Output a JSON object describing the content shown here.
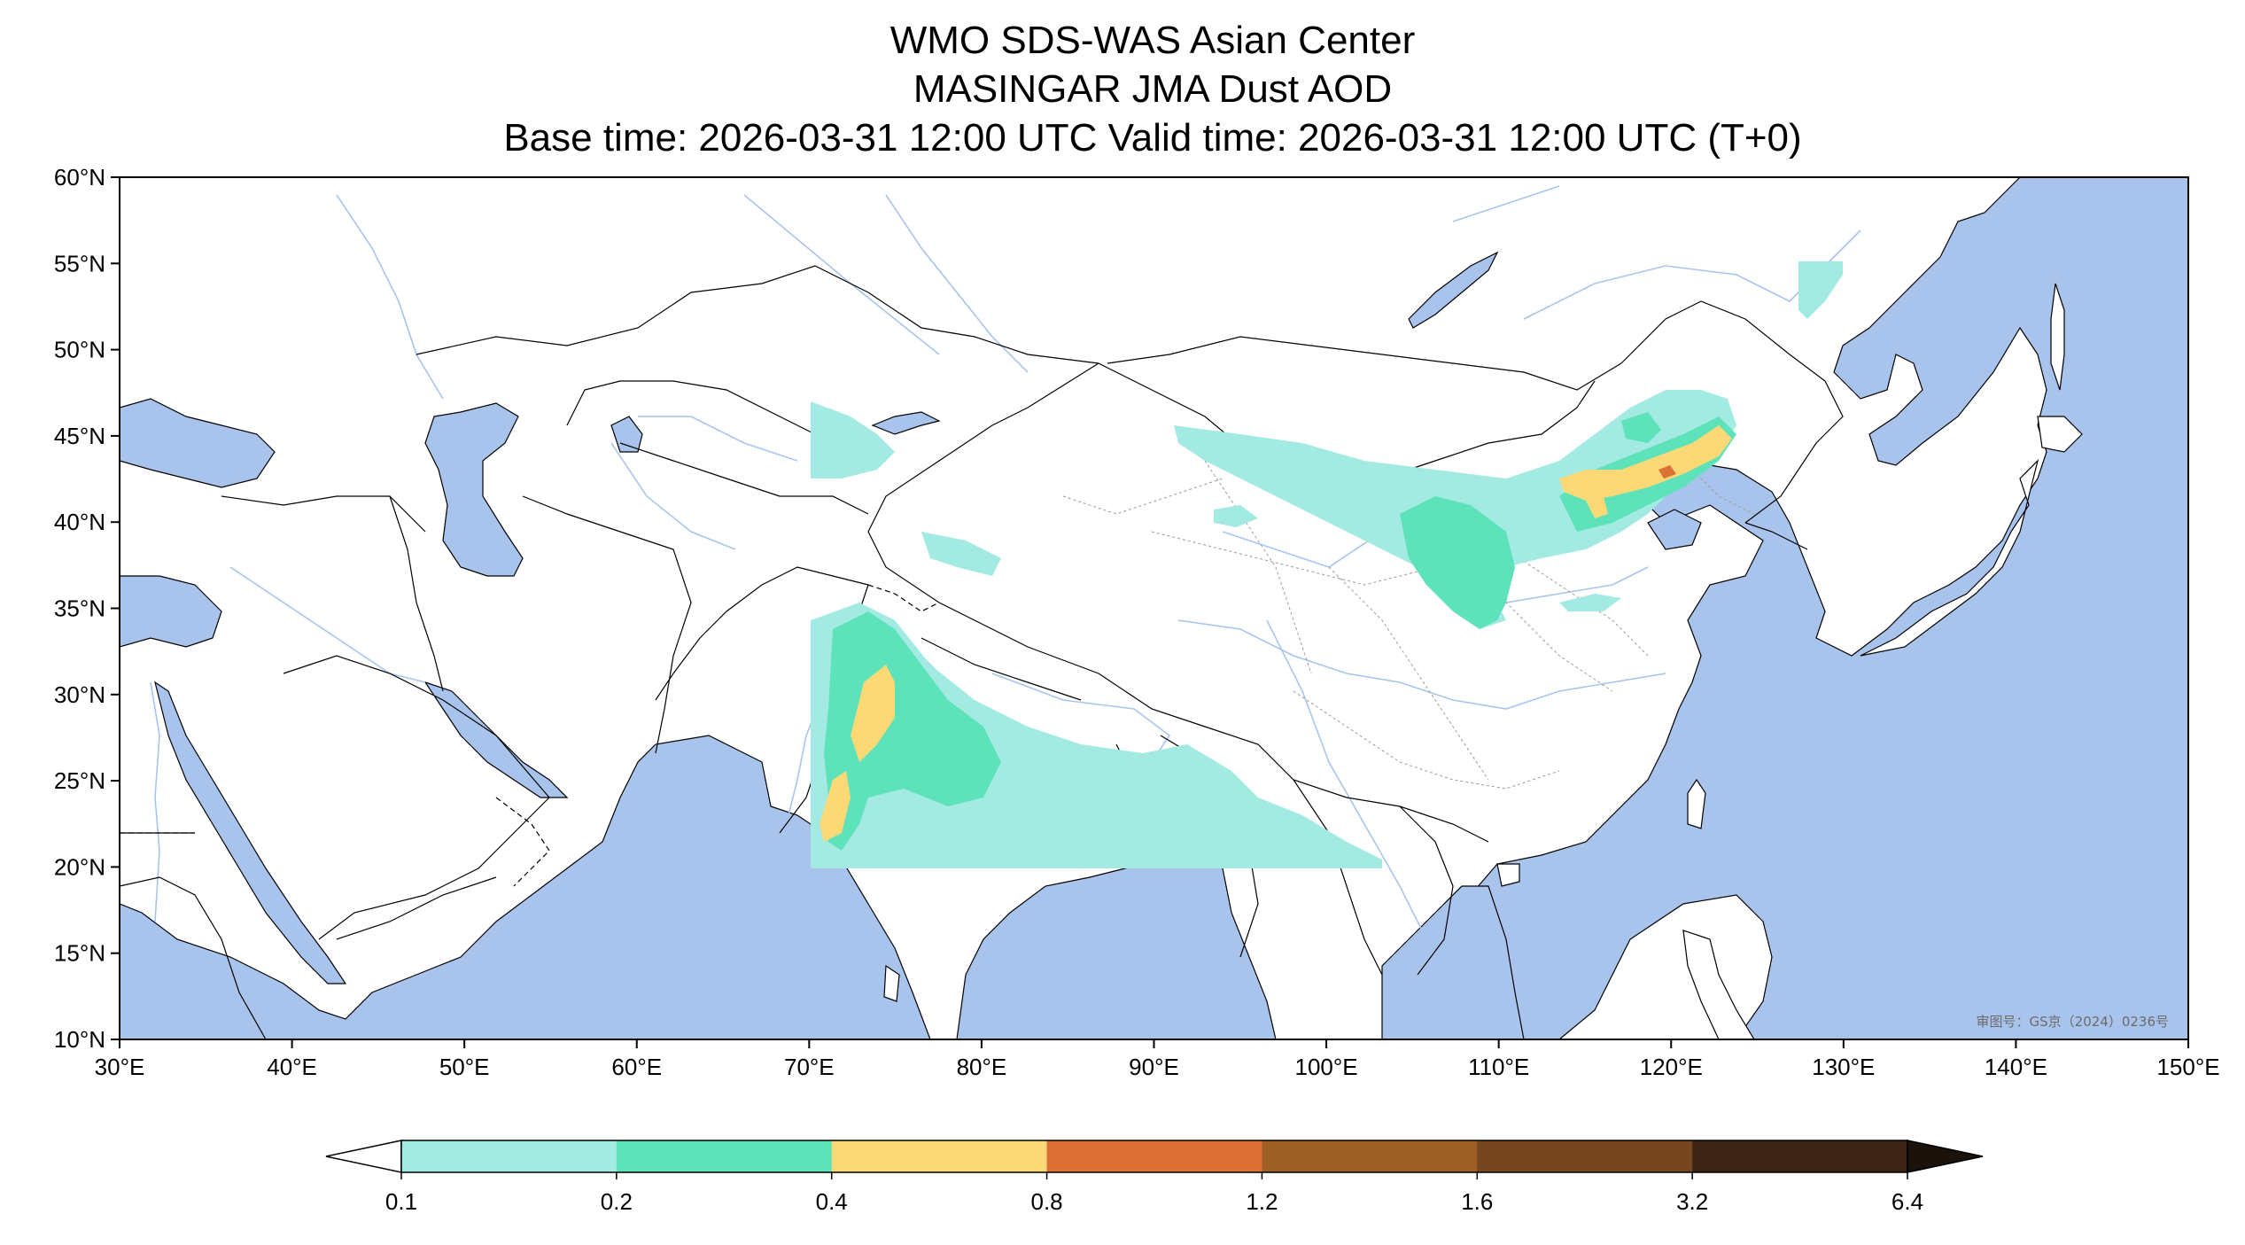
{
  "titles": [
    "WMO SDS-WAS Asian Center",
    "MASINGAR JMA Dust AOD",
    "Base time: 2026-03-31 12:00 UTC Valid time: 2026-03-31 12:00 UTC (T+0)"
  ],
  "map": {
    "lon_range": [
      30,
      150
    ],
    "lat_range": [
      10,
      60
    ],
    "lon_ticks": [
      "30°E",
      "40°E",
      "50°E",
      "60°E",
      "70°E",
      "80°E",
      "90°E",
      "100°E",
      "110°E",
      "120°E",
      "130°E",
      "140°E",
      "150°E"
    ],
    "lat_ticks": [
      "10°N",
      "15°N",
      "20°N",
      "25°N",
      "30°N",
      "35°N",
      "40°N",
      "45°N",
      "50°N",
      "55°N",
      "60°N"
    ],
    "ocean_color": "#a9c4ec",
    "land_color": "#ffffff",
    "river_color": "#a9c4ec",
    "watermark": "审图号：GS京（2024）0236号"
  },
  "colorbar": {
    "levels": [
      "0.1",
      "0.2",
      "0.4",
      "0.8",
      "1.2",
      "1.6",
      "3.2",
      "6.4"
    ],
    "colors": [
      "#a3ebe2",
      "#5ee2b9",
      "#fbd977",
      "#dd7034",
      "#9e5f26",
      "#76471e",
      "#3b2414"
    ],
    "under_color": "#ffffff",
    "over_color": "#1a120b"
  }
}
